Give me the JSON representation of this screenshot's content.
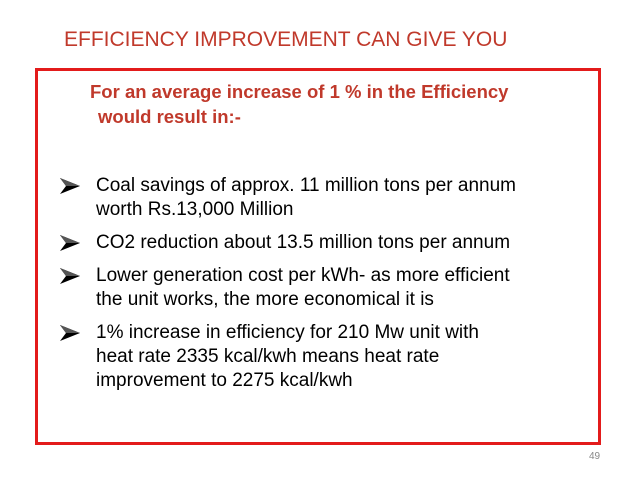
{
  "header": {
    "title": "EFFICIENCY IMPROVEMENT CAN GIVE YOU"
  },
  "subtitle": {
    "lines": [
      "For an average increase of 1 % in the Efficiency",
      "would result in:-"
    ]
  },
  "bullets": [
    {
      "lines": [
        "Coal savings of approx. 11 million tons per annum",
        "worth  Rs.13,000 Million"
      ]
    },
    {
      "lines": [
        "CO2 reduction  about 13.5 million tons per annum"
      ]
    },
    {
      "lines": [
        "Lower generation cost  per kWh- as more efficient",
        "the unit works, the more economical it is"
      ]
    },
    {
      "lines": [
        " 1% increase in efficiency for 210 Mw unit with",
        "heat rate 2335 kcal/kwh means heat rate",
        "improvement to 2275 kcal/kwh"
      ]
    }
  ],
  "footer": {
    "page_number": "49"
  }
}
